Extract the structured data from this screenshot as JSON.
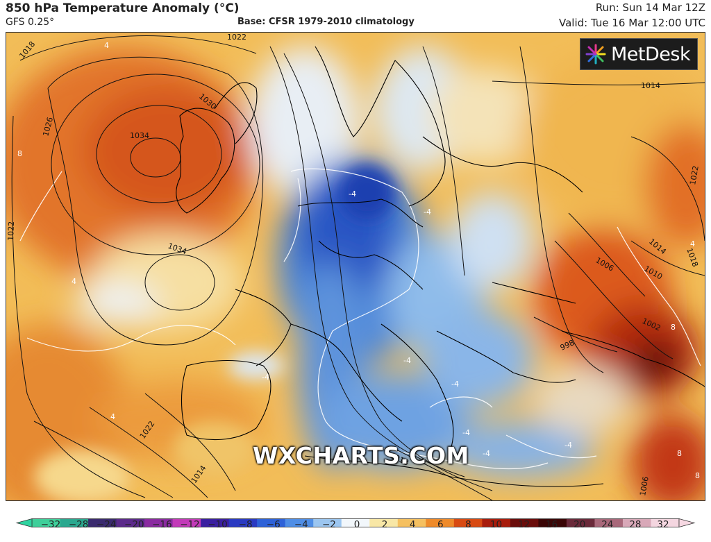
{
  "header": {
    "title": "850 hPa Temperature Anomaly (°C)",
    "model": "GFS 0.25°",
    "base": "Base: CFSR 1979-2010 climatology",
    "run": "Run: Sun 14 Mar 12Z",
    "valid": "Valid: Tue 16 Mar 12:00 UTC"
  },
  "branding": {
    "logo_text": "MetDesk",
    "logo_icon": "metdesk-starburst-icon",
    "watermark": "WXCHARTS.COM"
  },
  "map": {
    "isobar_labels": [
      "1018",
      "1022",
      "1030",
      "1034",
      "1026",
      "1022",
      "1034",
      "1014",
      "1022",
      "1014",
      "1018",
      "1006",
      "1010",
      "1002",
      "998",
      "1022",
      "1018",
      "1014",
      "1006"
    ],
    "anomaly_labels": [
      "4",
      "8",
      "4",
      "-4",
      "-4",
      "4",
      "-4",
      "-4",
      "-4",
      "-4",
      "-4",
      "-4",
      "8",
      "8",
      "8",
      "4"
    ]
  },
  "colorbar": {
    "ticks": [
      "−32",
      "−28",
      "−24",
      "−20",
      "−16",
      "−12",
      "−10",
      "−8",
      "−6",
      "−4",
      "−2",
      "0",
      "2",
      "4",
      "6",
      "8",
      "10",
      "12",
      "16",
      "20",
      "24",
      "28",
      "32"
    ],
    "colors": [
      "#3fcf9a",
      "#2aa88f",
      "#3a2a6e",
      "#5b2a8a",
      "#8a2aa0",
      "#c23ab8",
      "#3a1fa0",
      "#2a3ac2",
      "#2e62d8",
      "#4f8ee6",
      "#9cc6f0",
      "#f2f7fb",
      "#f8e7a6",
      "#f5c060",
      "#ee8a2a",
      "#d84a12",
      "#a81c0c",
      "#6a0c0a",
      "#3a0606",
      "#6a2a3a",
      "#a8687a",
      "#d8a8b8",
      "#f4d6e0"
    ]
  }
}
